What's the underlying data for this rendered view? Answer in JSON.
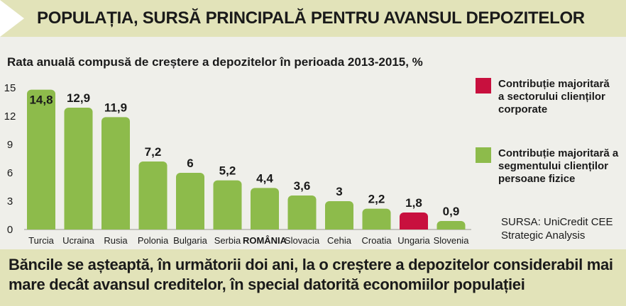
{
  "header": {
    "title": "POPULAȚIA, SURSĂ PRINCIPALĂ PENTRU AVANSUL DEPOZITELOR"
  },
  "chart_data": {
    "type": "bar",
    "title": "Rata anuală compusă de creștere a depozitelor în perioada 2013-2015, %",
    "categories": [
      "Turcia",
      "Ucraina",
      "Rusia",
      "Polonia",
      "Bulgaria",
      "Serbia",
      "ROMÂNIA",
      "Slovacia",
      "Cehia",
      "Croatia",
      "Ungaria",
      "Slovenia"
    ],
    "values": [
      14.8,
      12.9,
      11.9,
      7.2,
      6,
      5.2,
      4.4,
      3.6,
      3,
      2.2,
      1.8,
      0.9
    ],
    "value_labels": [
      "14,8",
      "12,9",
      "11,9",
      "7,2",
      "6",
      "5,2",
      "4,4",
      "3,6",
      "3",
      "2,2",
      "1,8",
      "0,9"
    ],
    "bar_segments": [
      "retail",
      "retail",
      "retail",
      "retail",
      "retail",
      "retail",
      "retail",
      "retail",
      "retail",
      "retail",
      "corporate",
      "retail"
    ],
    "highlight_category": "ROMÂNIA",
    "yticks": [
      "0",
      "3",
      "6",
      "9",
      "12",
      "15"
    ],
    "ylim": [
      0,
      15
    ],
    "xlabel": "",
    "ylabel": "",
    "grid": false,
    "legend_position": "right",
    "legend": [
      {
        "key": "corporate",
        "label": "Contribuție majoritară a sectorului clienților corporate",
        "color": "#c8103e"
      },
      {
        "key": "retail",
        "label": "Contribuție majoritară a segmentului clienților persoane fizice",
        "color": "#8dbb4b"
      }
    ]
  },
  "legend_text": {
    "corporate": [
      "Contribuție majoritară",
      "a sectorului clienților",
      "corporate"
    ],
    "retail": [
      "Contribuție majoritară a",
      "segmentului clienților",
      "persoane fizice"
    ]
  },
  "source": {
    "line1": "SURSA: UniCredit CEE",
    "line2": "Strategic Analysis"
  },
  "footer": {
    "text": "Băncile se așteaptă, în următorii doi ani, la o creștere a depozitelor considerabil mai mare decât avansul creditelor, în special datorită economiilor populației"
  },
  "colors": {
    "retail": "#8dbb4b",
    "corporate": "#c8103e",
    "band": "#e2e3b9",
    "panel": "#efefea",
    "text": "#1a1a1a"
  }
}
